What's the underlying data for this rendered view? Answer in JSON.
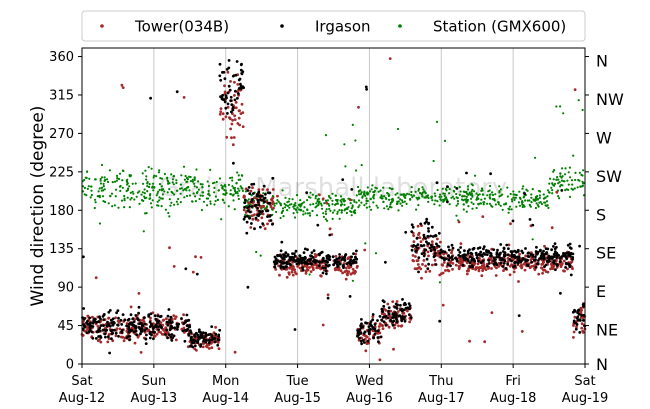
{
  "chart_data": {
    "type": "scatter",
    "title": "",
    "xlabel": "",
    "ylabel": "Wind direction (degree)",
    "x_range": [
      "Aug-12",
      "Aug-19"
    ],
    "ylim": [
      0,
      370
    ],
    "yticks": [
      0,
      45,
      90,
      135,
      180,
      225,
      270,
      315,
      360
    ],
    "right_axis_labels": [
      "N",
      "NE",
      "E",
      "SE",
      "S",
      "SW",
      "W",
      "NW",
      "N"
    ],
    "xticks": [
      {
        "day": "Sat",
        "date": "Aug-12"
      },
      {
        "day": "Sun",
        "date": "Aug-13"
      },
      {
        "day": "Mon",
        "date": "Aug-14"
      },
      {
        "day": "Tue",
        "date": "Aug-15"
      },
      {
        "day": "Wed",
        "date": "Aug-16"
      },
      {
        "day": "Thu",
        "date": "Aug-17"
      },
      {
        "day": "Fri",
        "date": "Aug-18"
      },
      {
        "day": "Sat",
        "date": "Aug-19"
      }
    ],
    "grid": "vertical",
    "legend_position": "top",
    "watermark": "Grain - Marshall laboratory",
    "series": [
      {
        "name": "Tower(034B)",
        "color": "#a52a2a",
        "segments": [
          {
            "from": "Aug-12",
            "to": "Aug-13 12:00",
            "center": 42,
            "spread": 15
          },
          {
            "from": "Aug-13 12:00",
            "to": "Aug-13 22:00",
            "center": 28,
            "spread": 12
          },
          {
            "from": "Aug-13 22:00",
            "to": "Aug-14 03:00",
            "center": 300,
            "spread": 35
          },
          {
            "from": "Aug-14 03:00",
            "to": "Aug-14 06:00",
            "center": 310,
            "spread": 30
          },
          {
            "from": "Aug-14 06:00",
            "to": "Aug-14 16:00",
            "center": 185,
            "spread": 25
          },
          {
            "from": "Aug-14 16:00",
            "to": "Aug-15 20:00",
            "center": 115,
            "spread": 12
          },
          {
            "from": "Aug-15 20:00",
            "to": "Aug-16 04:00",
            "center": 35,
            "spread": 15
          },
          {
            "from": "Aug-16 04:00",
            "to": "Aug-16 14:00",
            "center": 55,
            "spread": 15
          },
          {
            "from": "Aug-16 14:00",
            "to": "Aug-17 00:00",
            "center": 130,
            "spread": 30
          },
          {
            "from": "Aug-17 00:00",
            "to": "Aug-18 20:00",
            "center": 118,
            "spread": 12
          },
          {
            "from": "Aug-18 20:00",
            "to": "Aug-19",
            "center": 50,
            "spread": 18
          }
        ]
      },
      {
        "name": "Irgason",
        "color": "#000000",
        "segments": [
          {
            "from": "Aug-12",
            "to": "Aug-13 12:00",
            "center": 45,
            "spread": 16
          },
          {
            "from": "Aug-13 12:00",
            "to": "Aug-13 22:00",
            "center": 30,
            "spread": 12
          },
          {
            "from": "Aug-13 22:00",
            "to": "Aug-14 03:00",
            "center": 320,
            "spread": 30
          },
          {
            "from": "Aug-14 03:00",
            "to": "Aug-14 06:00",
            "center": 330,
            "spread": 25
          },
          {
            "from": "Aug-14 06:00",
            "to": "Aug-14 16:00",
            "center": 185,
            "spread": 25
          },
          {
            "from": "Aug-14 16:00",
            "to": "Aug-15 20:00",
            "center": 122,
            "spread": 12
          },
          {
            "from": "Aug-15 20:00",
            "to": "Aug-16 04:00",
            "center": 40,
            "spread": 15
          },
          {
            "from": "Aug-16 04:00",
            "to": "Aug-16 14:00",
            "center": 60,
            "spread": 15
          },
          {
            "from": "Aug-16 14:00",
            "to": "Aug-17 00:00",
            "center": 140,
            "spread": 30
          },
          {
            "from": "Aug-17 00:00",
            "to": "Aug-18 20:00",
            "center": 126,
            "spread": 12
          },
          {
            "from": "Aug-18 20:00",
            "to": "Aug-19",
            "center": 55,
            "spread": 18
          }
        ]
      },
      {
        "name": "Station (GMX600)",
        "color": "#008000",
        "segments": [
          {
            "from": "Aug-12",
            "to": "Aug-14 06:00",
            "center": 205,
            "spread": 22
          },
          {
            "from": "Aug-14 06:00",
            "to": "Aug-15 20:00",
            "center": 185,
            "spread": 15
          },
          {
            "from": "Aug-15 20:00",
            "to": "Aug-18 12:00",
            "center": 195,
            "spread": 14
          },
          {
            "from": "Aug-18 12:00",
            "to": "Aug-19",
            "center": 215,
            "spread": 20
          }
        ]
      }
    ]
  }
}
